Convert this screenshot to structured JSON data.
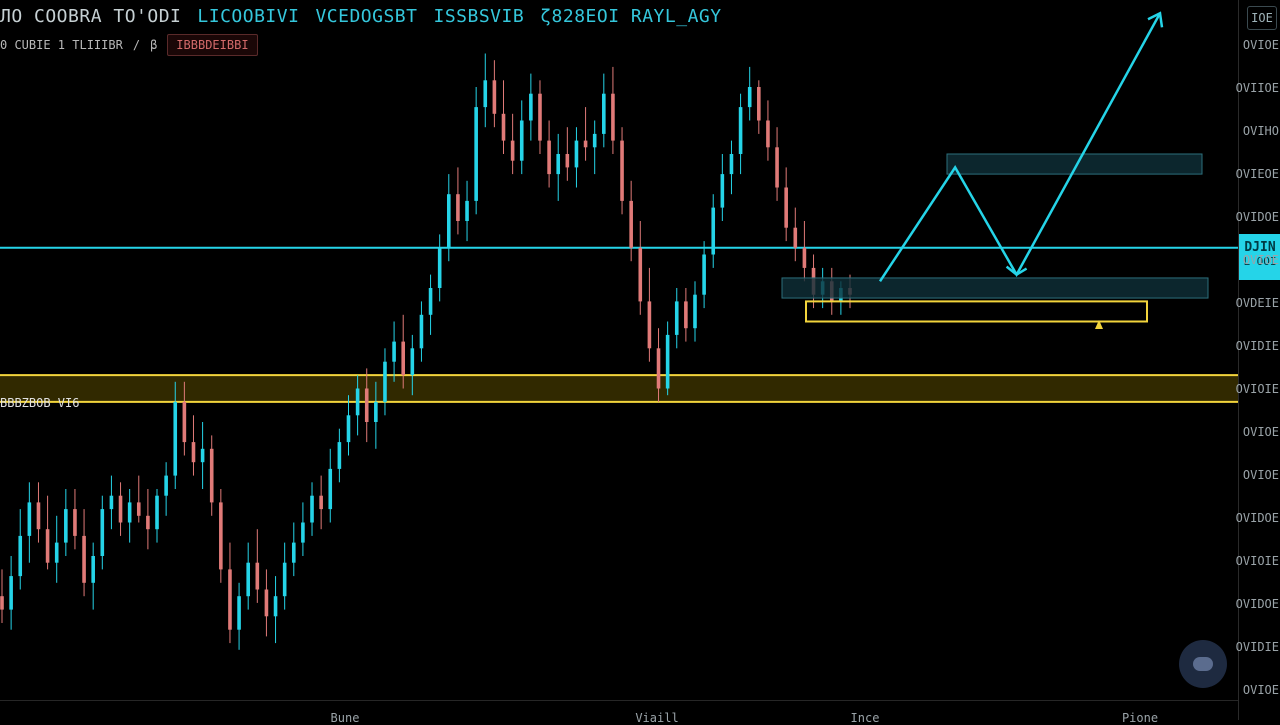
{
  "header": {
    "title_segments": [
      {
        "text": "ЛO COOBRA TO'ODI",
        "color": "#c6d0d3"
      },
      {
        "text": "LICOOBIVI",
        "color": "#35c7dc"
      },
      {
        "text": "VCEDOGSBT",
        "color": "#35c7dc"
      },
      {
        "text": "ISSBSVIB",
        "color": "#35c7dc"
      },
      {
        "text": "ζ828EOI RAYL_AGY",
        "color": "#35c7dc"
      }
    ],
    "sub_items": [
      "0 CUBIE 1 TLIIIBR",
      "/",
      "β"
    ],
    "sub_badge": "IBBBDEIBBI"
  },
  "price_axis": {
    "top_button": "IOE",
    "labels": [
      "OVIOE",
      "OVIIOE",
      "OVIHO",
      "OVIEOE",
      "OVIDOE",
      "OVIOE",
      "OVDEIE",
      "OVIDIE",
      "OVIOIE",
      "OVIOE",
      "OVIOE",
      "OVIDOE",
      "OVIOIE",
      "OVIDOE",
      "OVIDIE",
      "OVIOE"
    ],
    "current_price": {
      "line1": "DJIN",
      "line2": "L OOI"
    }
  },
  "zone_label": "BBBZBOB VI6",
  "time_axis": {
    "labels": [
      "Bune",
      "Viaill",
      "Ince",
      "Pione"
    ]
  },
  "colors": {
    "bull": "#25d4e8",
    "bear": "#e07a78",
    "resistance_line": "#25d4e8",
    "support_zone": "#f2d43c",
    "projection": "#25d4e8"
  },
  "chart_data": {
    "type": "candlestick",
    "title": "",
    "xlabel": "",
    "ylabel": "",
    "ylim": [
      0,
      100
    ],
    "resistance_level": 66,
    "support_zone": [
      43,
      47
    ],
    "entry_zone": [
      55,
      58
    ],
    "entry_icon": "alert-icon",
    "projection_path": [
      [
        0,
        61
      ],
      [
        11,
        78
      ],
      [
        20,
        62
      ],
      [
        41,
        101
      ]
    ],
    "target_box_upper": [
      77,
      80
    ],
    "target_box_lower": [
      58.5,
      61.5
    ],
    "candles": [
      {
        "o": 14,
        "h": 18,
        "l": 10,
        "c": 12
      },
      {
        "o": 12,
        "h": 20,
        "l": 9,
        "c": 17
      },
      {
        "o": 17,
        "h": 27,
        "l": 15,
        "c": 23
      },
      {
        "o": 23,
        "h": 31,
        "l": 19,
        "c": 28
      },
      {
        "o": 28,
        "h": 31,
        "l": 22,
        "c": 24
      },
      {
        "o": 24,
        "h": 29,
        "l": 18,
        "c": 19
      },
      {
        "o": 19,
        "h": 26,
        "l": 16,
        "c": 22
      },
      {
        "o": 22,
        "h": 30,
        "l": 20,
        "c": 27
      },
      {
        "o": 27,
        "h": 30,
        "l": 21,
        "c": 23
      },
      {
        "o": 23,
        "h": 27,
        "l": 14,
        "c": 16
      },
      {
        "o": 16,
        "h": 22,
        "l": 12,
        "c": 20
      },
      {
        "o": 20,
        "h": 29,
        "l": 18,
        "c": 27
      },
      {
        "o": 27,
        "h": 32,
        "l": 24,
        "c": 29
      },
      {
        "o": 29,
        "h": 31,
        "l": 23,
        "c": 25
      },
      {
        "o": 25,
        "h": 30,
        "l": 22,
        "c": 28
      },
      {
        "o": 28,
        "h": 32,
        "l": 25,
        "c": 26
      },
      {
        "o": 26,
        "h": 30,
        "l": 21,
        "c": 24
      },
      {
        "o": 24,
        "h": 30,
        "l": 22,
        "c": 29
      },
      {
        "o": 29,
        "h": 34,
        "l": 26,
        "c": 32
      },
      {
        "o": 32,
        "h": 46,
        "l": 30,
        "c": 43
      },
      {
        "o": 43,
        "h": 46,
        "l": 35,
        "c": 37
      },
      {
        "o": 37,
        "h": 41,
        "l": 32,
        "c": 34
      },
      {
        "o": 34,
        "h": 40,
        "l": 30,
        "c": 36
      },
      {
        "o": 36,
        "h": 38,
        "l": 26,
        "c": 28
      },
      {
        "o": 28,
        "h": 30,
        "l": 16,
        "c": 18
      },
      {
        "o": 18,
        "h": 22,
        "l": 7,
        "c": 9
      },
      {
        "o": 9,
        "h": 16,
        "l": 6,
        "c": 14
      },
      {
        "o": 14,
        "h": 22,
        "l": 12,
        "c": 19
      },
      {
        "o": 19,
        "h": 24,
        "l": 13,
        "c": 15
      },
      {
        "o": 15,
        "h": 18,
        "l": 8,
        "c": 11
      },
      {
        "o": 11,
        "h": 17,
        "l": 7,
        "c": 14
      },
      {
        "o": 14,
        "h": 22,
        "l": 12,
        "c": 19
      },
      {
        "o": 19,
        "h": 25,
        "l": 17,
        "c": 22
      },
      {
        "o": 22,
        "h": 28,
        "l": 20,
        "c": 25
      },
      {
        "o": 25,
        "h": 31,
        "l": 23,
        "c": 29
      },
      {
        "o": 29,
        "h": 32,
        "l": 24,
        "c": 27
      },
      {
        "o": 27,
        "h": 36,
        "l": 25,
        "c": 33
      },
      {
        "o": 33,
        "h": 39,
        "l": 31,
        "c": 37
      },
      {
        "o": 37,
        "h": 44,
        "l": 35,
        "c": 41
      },
      {
        "o": 41,
        "h": 47,
        "l": 38,
        "c": 45
      },
      {
        "o": 45,
        "h": 48,
        "l": 37,
        "c": 40
      },
      {
        "o": 40,
        "h": 46,
        "l": 36,
        "c": 43
      },
      {
        "o": 43,
        "h": 51,
        "l": 41,
        "c": 49
      },
      {
        "o": 49,
        "h": 55,
        "l": 46,
        "c": 52
      },
      {
        "o": 52,
        "h": 56,
        "l": 45,
        "c": 47
      },
      {
        "o": 47,
        "h": 53,
        "l": 44,
        "c": 51
      },
      {
        "o": 51,
        "h": 58,
        "l": 49,
        "c": 56
      },
      {
        "o": 56,
        "h": 62,
        "l": 53,
        "c": 60
      },
      {
        "o": 60,
        "h": 68,
        "l": 58,
        "c": 66
      },
      {
        "o": 66,
        "h": 77,
        "l": 64,
        "c": 74
      },
      {
        "o": 74,
        "h": 78,
        "l": 68,
        "c": 70
      },
      {
        "o": 70,
        "h": 76,
        "l": 67,
        "c": 73
      },
      {
        "o": 73,
        "h": 90,
        "l": 71,
        "c": 87
      },
      {
        "o": 87,
        "h": 95,
        "l": 84,
        "c": 91
      },
      {
        "o": 91,
        "h": 94,
        "l": 84,
        "c": 86
      },
      {
        "o": 86,
        "h": 91,
        "l": 80,
        "c": 82
      },
      {
        "o": 82,
        "h": 86,
        "l": 77,
        "c": 79
      },
      {
        "o": 79,
        "h": 88,
        "l": 77,
        "c": 85
      },
      {
        "o": 85,
        "h": 92,
        "l": 82,
        "c": 89
      },
      {
        "o": 89,
        "h": 91,
        "l": 80,
        "c": 82
      },
      {
        "o": 82,
        "h": 85,
        "l": 75,
        "c": 77
      },
      {
        "o": 77,
        "h": 83,
        "l": 73,
        "c": 80
      },
      {
        "o": 80,
        "h": 84,
        "l": 76,
        "c": 78
      },
      {
        "o": 78,
        "h": 84,
        "l": 75,
        "c": 82
      },
      {
        "o": 82,
        "h": 87,
        "l": 79,
        "c": 81
      },
      {
        "o": 81,
        "h": 85,
        "l": 77,
        "c": 83
      },
      {
        "o": 83,
        "h": 92,
        "l": 81,
        "c": 89
      },
      {
        "o": 89,
        "h": 93,
        "l": 80,
        "c": 82
      },
      {
        "o": 82,
        "h": 84,
        "l": 71,
        "c": 73
      },
      {
        "o": 73,
        "h": 76,
        "l": 64,
        "c": 66
      },
      {
        "o": 66,
        "h": 70,
        "l": 56,
        "c": 58
      },
      {
        "o": 58,
        "h": 63,
        "l": 49,
        "c": 51
      },
      {
        "o": 51,
        "h": 54,
        "l": 43,
        "c": 45
      },
      {
        "o": 45,
        "h": 55,
        "l": 44,
        "c": 53
      },
      {
        "o": 53,
        "h": 60,
        "l": 51,
        "c": 58
      },
      {
        "o": 58,
        "h": 60,
        "l": 52,
        "c": 54
      },
      {
        "o": 54,
        "h": 61,
        "l": 52,
        "c": 59
      },
      {
        "o": 59,
        "h": 67,
        "l": 57,
        "c": 65
      },
      {
        "o": 65,
        "h": 74,
        "l": 63,
        "c": 72
      },
      {
        "o": 72,
        "h": 80,
        "l": 70,
        "c": 77
      },
      {
        "o": 77,
        "h": 82,
        "l": 74,
        "c": 80
      },
      {
        "o": 80,
        "h": 89,
        "l": 77,
        "c": 87
      },
      {
        "o": 87,
        "h": 93,
        "l": 85,
        "c": 90
      },
      {
        "o": 90,
        "h": 91,
        "l": 83,
        "c": 85
      },
      {
        "o": 85,
        "h": 88,
        "l": 79,
        "c": 81
      },
      {
        "o": 81,
        "h": 84,
        "l": 73,
        "c": 75
      },
      {
        "o": 75,
        "h": 78,
        "l": 67,
        "c": 69
      },
      {
        "o": 69,
        "h": 72,
        "l": 64,
        "c": 66
      },
      {
        "o": 66,
        "h": 70,
        "l": 61,
        "c": 63
      },
      {
        "o": 63,
        "h": 65,
        "l": 57,
        "c": 59
      },
      {
        "o": 59,
        "h": 63,
        "l": 57,
        "c": 61
      },
      {
        "o": 61,
        "h": 63,
        "l": 56,
        "c": 58
      },
      {
        "o": 58,
        "h": 61,
        "l": 56,
        "c": 60
      },
      {
        "o": 60,
        "h": 62,
        "l": 57,
        "c": 59
      }
    ]
  }
}
